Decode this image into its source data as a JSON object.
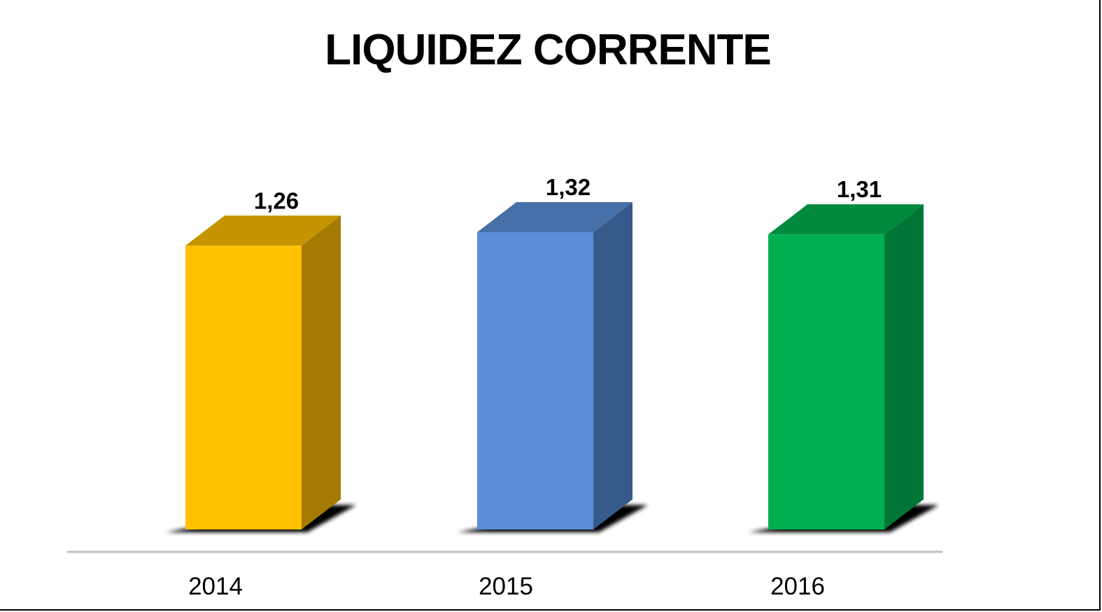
{
  "chart_data": {
    "type": "bar",
    "title": "LIQUIDEZ CORRENTE",
    "categories": [
      "2014",
      "2015",
      "2016"
    ],
    "values": [
      1.26,
      1.32,
      1.31
    ],
    "value_labels": [
      "1,26",
      "1,32",
      "1,31"
    ],
    "colors": [
      {
        "front": "#FFC000",
        "side": "#A47B00",
        "top": "#C59400"
      },
      {
        "front": "#5B8ED6",
        "side": "#365B8A",
        "top": "#4670A8"
      },
      {
        "front": "#00B050",
        "side": "#007636",
        "top": "#008A3E"
      }
    ],
    "style": "3d-column",
    "grid": false,
    "legend": "none"
  }
}
